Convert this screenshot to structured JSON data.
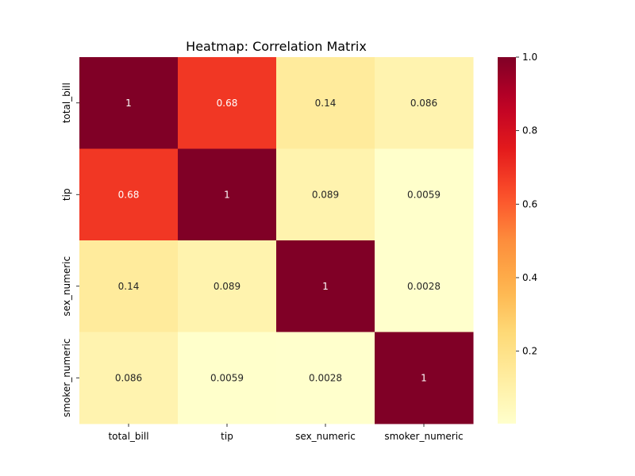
{
  "chart_data": {
    "type": "heatmap",
    "title": "Heatmap: Correlation Matrix",
    "xlabel": "",
    "ylabel": "",
    "x_categories": [
      "total_bill",
      "tip",
      "sex_numeric",
      "smoker_numeric"
    ],
    "y_categories": [
      "total_bill",
      "tip",
      "sex_numeric",
      "smoker_numeric"
    ],
    "values": [
      [
        1,
        0.68,
        0.14,
        0.086
      ],
      [
        0.68,
        1,
        0.089,
        0.0059
      ],
      [
        0.14,
        0.089,
        1,
        0.0028
      ],
      [
        0.086,
        0.0059,
        0.0028,
        1
      ]
    ],
    "annotations": [
      [
        "1",
        "0.68",
        "0.14",
        "0.086"
      ],
      [
        "0.68",
        "1",
        "0.089",
        "0.0059"
      ],
      [
        "0.14",
        "0.089",
        "1",
        "0.0028"
      ],
      [
        "0.086",
        "0.0059",
        "0.0028",
        "1"
      ]
    ],
    "colormap": "YlOrRd",
    "vmin": 0.0028,
    "vmax": 1.0,
    "colorbar": {
      "ticks": [
        0.2,
        0.4,
        0.6,
        0.8,
        1.0
      ],
      "tick_labels": [
        "0.2",
        "0.4",
        "0.6",
        "0.8",
        "1.0"
      ]
    },
    "grid": false
  }
}
